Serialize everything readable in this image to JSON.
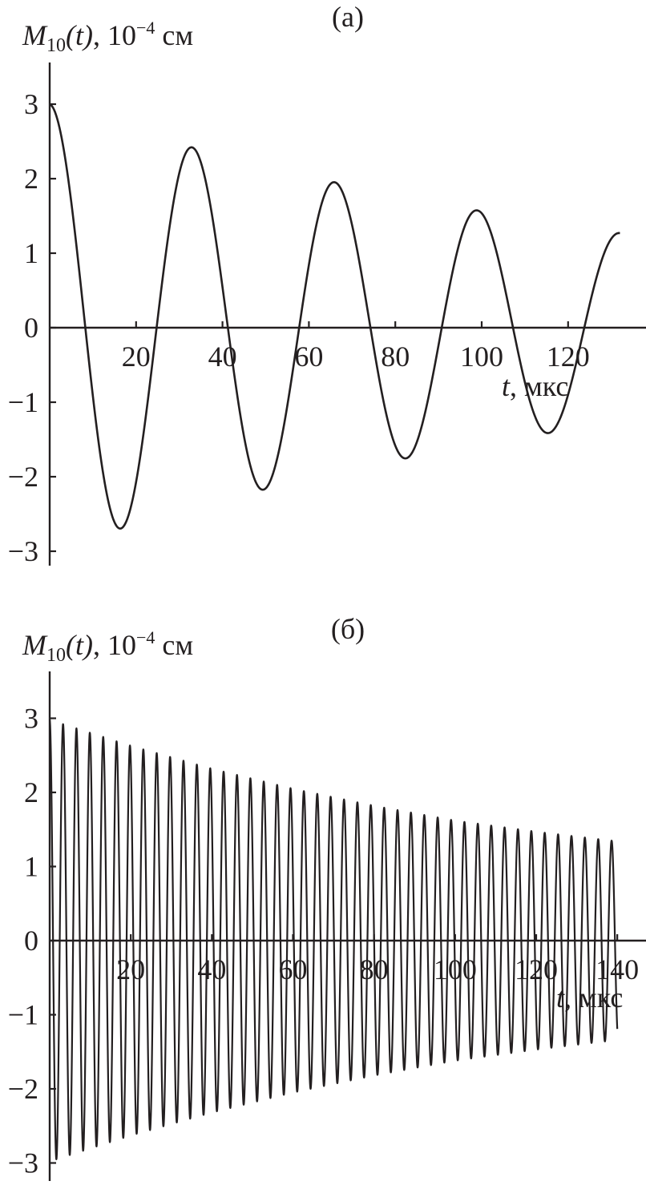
{
  "chart_data": [
    {
      "type": "line",
      "panel_label": "(a)",
      "ylabel": {
        "symbol": "M",
        "subscript": "10",
        "arg": "(t)",
        "unit_prefix": ", 10",
        "exponent": "−4",
        "unit": " см"
      },
      "xlabel": {
        "symbol": "t",
        "unit": ", мкс"
      },
      "xticks": [
        20,
        40,
        60,
        80,
        100,
        120
      ],
      "yticks": [
        3,
        2,
        1,
        0,
        -1,
        -2,
        -3
      ],
      "ytick_labels": [
        "3",
        "2",
        "1",
        "0",
        "−1",
        "−2",
        "−3"
      ],
      "xlim": [
        0,
        134
      ],
      "ylim": [
        -3.2,
        3.6
      ],
      "t_range": [
        0,
        132
      ],
      "series": [
        {
          "values_description": "damped oscillation",
          "x": [
            0,
            8.2,
            16.5,
            24.7,
            33,
            41.2,
            49.5,
            57.7,
            66,
            74.2,
            82.5,
            90.7,
            99,
            107.2,
            115.5,
            123.7,
            132
          ],
          "y": [
            3.0,
            0,
            -2.68,
            0,
            2.42,
            0,
            -2.16,
            0,
            1.94,
            0,
            -1.73,
            0,
            1.57,
            0,
            -1.4,
            0,
            1.27
          ]
        }
      ],
      "grid": false
    },
    {
      "type": "line",
      "panel_label": "(б)",
      "ylabel": {
        "symbol": "M",
        "subscript": "10",
        "arg": "(t)",
        "unit_prefix": ", 10",
        "exponent": "−4",
        "unit": " см"
      },
      "xlabel": {
        "symbol": "t",
        "unit": ", мкс"
      },
      "xticks": [
        20,
        40,
        60,
        80,
        100,
        120,
        140
      ],
      "yticks": [
        3,
        2,
        1,
        0,
        -1,
        -2,
        -3
      ],
      "ytick_labels": [
        "3",
        "2",
        "1",
        "0",
        "−1",
        "−2",
        "−3"
      ],
      "xlim": [
        0,
        144
      ],
      "ylim": [
        -3.2,
        3.6
      ],
      "t_range": [
        0,
        140
      ],
      "series": [
        {
          "values_description": "fast oscillation with slowly decaying envelope",
          "envelope_x": [
            0,
            20,
            40,
            60,
            80,
            100,
            120,
            140
          ],
          "envelope_y": [
            2.98,
            2.63,
            2.32,
            2.05,
            1.82,
            1.62,
            1.47,
            1.34
          ],
          "period": 3.3
        }
      ],
      "grid": false
    }
  ]
}
